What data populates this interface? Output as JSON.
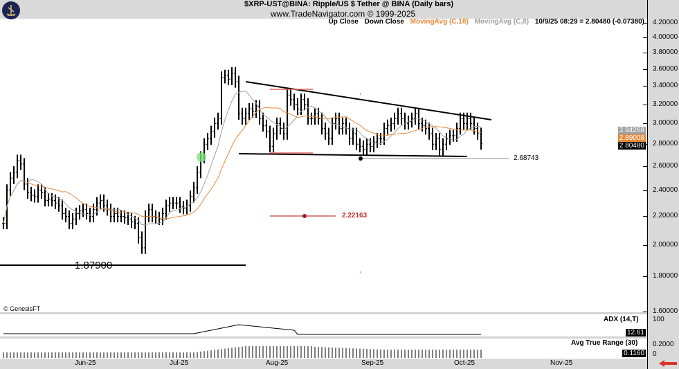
{
  "header": {
    "title": "$XRP-UST@BINA:  Ripple/US $ Tether @ BINA  (Daily bars)",
    "site": "www.TradeNavigator.com © 1999-2025"
  },
  "legend": {
    "up_close": "Up Close",
    "down_close": "Down Close",
    "ma18": "MovingAvg (C,18)",
    "ma8": "MovingAvg (C,8)",
    "quote": "10/9/25 08:29 = 2.80480 (-0.07380)"
  },
  "colors": {
    "ma18": "#e8893a",
    "ma8": "#a0a0a0",
    "bars": "#000000",
    "annotation_red": "#c0282a",
    "highlight_green": "#7ee07a"
  },
  "copyright": "© GenesisFT",
  "price_axis": {
    "scale": "log",
    "range": [
      1.6,
      4.2
    ],
    "ticks": [
      "4.20000",
      "4.00000",
      "3.80000",
      "3.60000",
      "3.40000",
      "3.20000",
      "3.00000",
      "2.80000",
      "2.60000",
      "2.40000",
      "2.20000",
      "2.00000",
      "1.80000",
      "1.60000"
    ],
    "tags": {
      "ma8": "2.94268",
      "ma18": "2.89008",
      "last": "2.80480"
    }
  },
  "annotations": {
    "support_label": "2.68743",
    "target_label": "2.22163",
    "low_label": "1.87900"
  },
  "x_axis": {
    "labels": [
      "Jun-25",
      "Jul-25",
      "Aug-25",
      "Sep-25",
      "Oct-25",
      "Nov-25"
    ]
  },
  "adx": {
    "label": "ADX (14,T)",
    "axis_max": "100",
    "value": "12.61"
  },
  "atr": {
    "label": "Avg True Range (30)",
    "axis_tick": "0.2000",
    "axis_min": "0",
    "value": "0.1160"
  },
  "chart_data": {
    "type": "ohlc",
    "interval": "daily",
    "closes": [
      2.15,
      2.4,
      2.5,
      2.55,
      2.65,
      2.62,
      2.45,
      2.38,
      2.36,
      2.35,
      2.4,
      2.38,
      2.32,
      2.33,
      2.32,
      2.3,
      2.28,
      2.22,
      2.2,
      2.15,
      2.18,
      2.22,
      2.24,
      2.25,
      2.22,
      2.2,
      2.25,
      2.3,
      2.32,
      2.28,
      2.25,
      2.2,
      2.22,
      2.2,
      2.2,
      2.19,
      2.18,
      2.16,
      2.15,
      2.05,
      1.98,
      2.2,
      2.25,
      2.2,
      2.19,
      2.18,
      2.22,
      2.28,
      2.3,
      2.3,
      2.3,
      2.27,
      2.26,
      2.28,
      2.35,
      2.42,
      2.55,
      2.68,
      2.8,
      2.85,
      2.92,
      3.0,
      3.05,
      3.5,
      3.52,
      3.48,
      3.55,
      3.45,
      3.1,
      3.05,
      3.1,
      3.15,
      3.12,
      3.18,
      3.05,
      2.98,
      2.92,
      2.78,
      2.9,
      3.0,
      2.95,
      2.9,
      3.3,
      3.25,
      3.2,
      3.15,
      3.25,
      3.2,
      3.05,
      3.05,
      3.1,
      3.05,
      2.95,
      2.9,
      2.85,
      3.0,
      3.05,
      2.95,
      3.0,
      2.95,
      2.85,
      2.9,
      2.8,
      2.78,
      2.75,
      2.8,
      2.78,
      2.82,
      2.85,
      2.85,
      2.95,
      2.98,
      3.0,
      3.05,
      3.1,
      3.05,
      3.0,
      3.02,
      3.05,
      3.1,
      3.0,
      2.98,
      2.95,
      2.9,
      2.8,
      2.85,
      2.75,
      2.8,
      2.85,
      2.88,
      2.88,
      2.95,
      3.05,
      3.0,
      3.05,
      3.0,
      2.95,
      2.9,
      2.8048
    ]
  }
}
